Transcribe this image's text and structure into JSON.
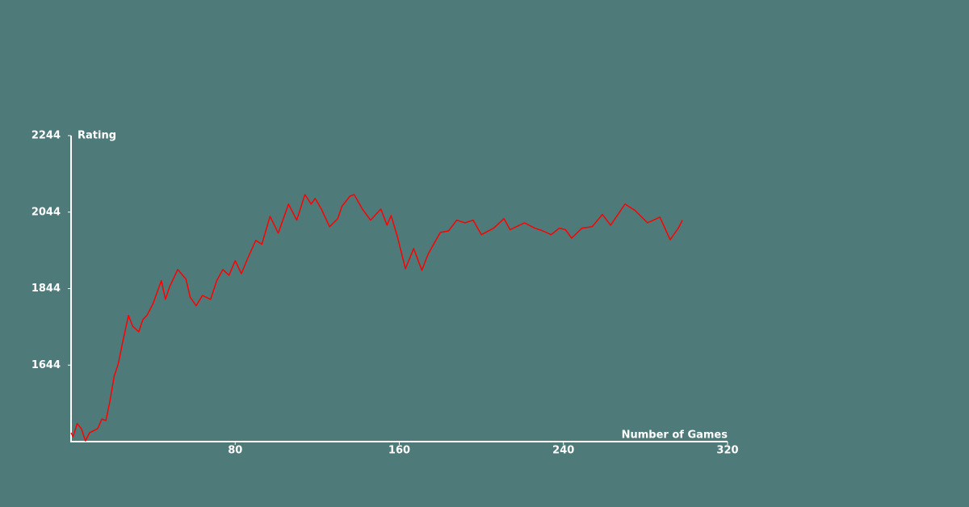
{
  "chart_data": {
    "type": "line",
    "y_label": "Rating",
    "x_label": "Number of Games",
    "xlim": [
      0,
      320
    ],
    "xticks": [
      80,
      160,
      240,
      320
    ],
    "ylim": [
      1444,
      2244
    ],
    "yticks": [
      1644,
      1844,
      2044,
      2244
    ],
    "x": [
      0,
      1,
      3,
      5,
      7,
      9,
      13,
      15,
      17,
      19,
      21,
      23,
      25,
      28,
      30,
      33,
      35,
      37,
      40,
      44,
      46,
      48,
      52,
      56,
      58,
      61,
      64,
      68,
      71,
      74,
      77,
      80,
      83,
      86,
      90,
      93,
      97,
      101,
      106,
      110,
      114,
      117,
      119,
      122,
      126,
      130,
      132,
      136,
      138,
      142,
      146,
      151,
      154,
      156,
      159,
      163,
      167,
      171,
      174,
      180,
      184,
      188,
      192,
      196,
      200,
      206,
      211,
      214,
      221,
      226,
      230,
      234,
      238,
      241,
      244,
      249,
      254,
      259,
      263,
      270,
      275,
      281,
      287,
      292,
      296,
      298
    ],
    "series": [
      {
        "name": "Rating",
        "color": "#ff0000",
        "values": [
          1467,
          1457,
          1491,
          1478,
          1446,
          1467,
          1478,
          1503,
          1499,
          1552,
          1615,
          1647,
          1700,
          1774,
          1746,
          1731,
          1763,
          1774,
          1805,
          1865,
          1816,
          1848,
          1894,
          1869,
          1822,
          1799,
          1826,
          1816,
          1865,
          1894,
          1879,
          1917,
          1883,
          1922,
          1970,
          1960,
          2033,
          1989,
          2065,
          2023,
          2090,
          2065,
          2080,
          2052,
          2006,
          2027,
          2059,
          2086,
          2090,
          2052,
          2023,
          2052,
          2010,
          2035,
          1981,
          1896,
          1949,
          1892,
          1934,
          1991,
          1995,
          2023,
          2016,
          2023,
          1985,
          2002,
          2027,
          1998,
          2016,
          2002,
          1995,
          1985,
          2002,
          1998,
          1976,
          2002,
          2006,
          2038,
          2010,
          2065,
          2048,
          2016,
          2031,
          1972,
          2002,
          2023
        ]
      }
    ]
  }
}
